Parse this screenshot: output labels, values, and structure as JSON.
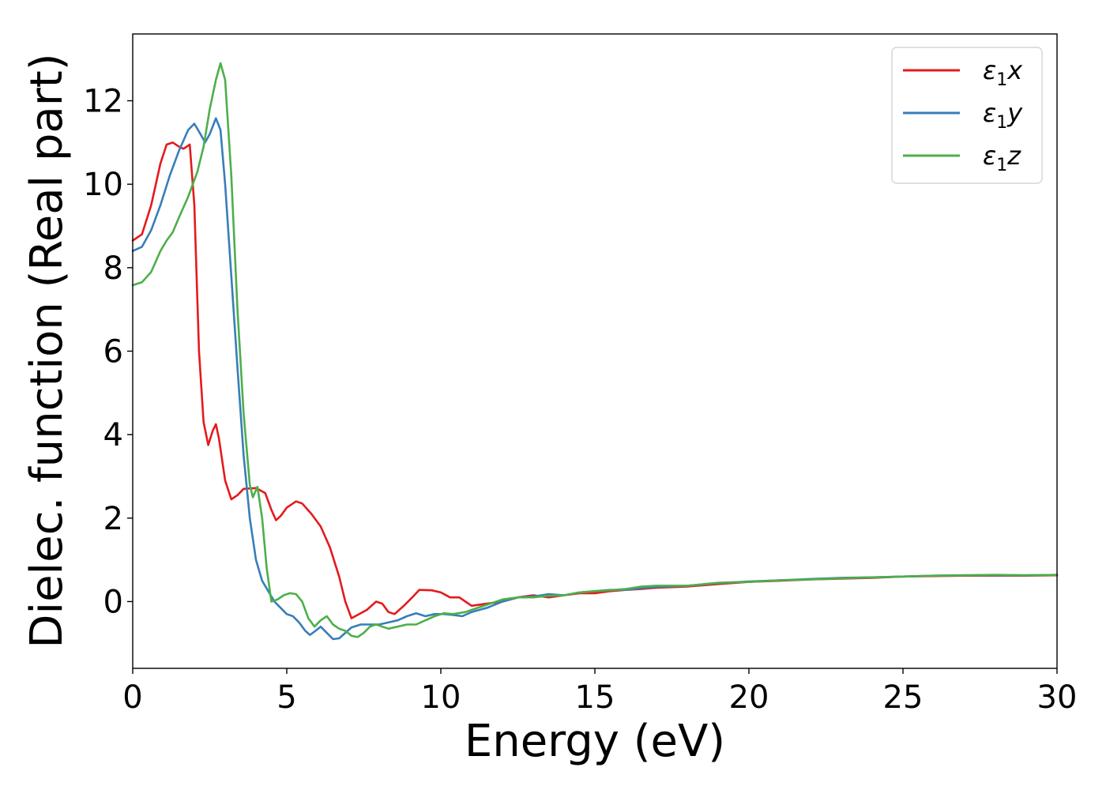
{
  "chart_data": {
    "type": "line",
    "xlabel": "Energy (eV)",
    "ylabel": "Dielec. function (Real part)",
    "xlim": [
      0,
      30
    ],
    "ylim": [
      -1.6,
      13.6
    ],
    "xticks": [
      0,
      5,
      10,
      15,
      20,
      25,
      30
    ],
    "yticks": [
      0,
      2,
      4,
      6,
      8,
      10,
      12
    ],
    "grid": false,
    "legend_position": "top-right",
    "series": [
      {
        "name": "ε1x",
        "legend_base": "ε",
        "legend_sub": "1",
        "legend_suffix": "x",
        "color": "#e41a1c",
        "points": [
          [
            0,
            8.65
          ],
          [
            0.3,
            8.8
          ],
          [
            0.6,
            9.5
          ],
          [
            0.9,
            10.5
          ],
          [
            1.1,
            10.95
          ],
          [
            1.3,
            11.0
          ],
          [
            1.5,
            10.9
          ],
          [
            1.65,
            10.85
          ],
          [
            1.85,
            10.95
          ],
          [
            2.0,
            9.5
          ],
          [
            2.15,
            6.0
          ],
          [
            2.3,
            4.3
          ],
          [
            2.45,
            3.75
          ],
          [
            2.6,
            4.1
          ],
          [
            2.7,
            4.25
          ],
          [
            2.8,
            3.9
          ],
          [
            3.0,
            2.9
          ],
          [
            3.2,
            2.45
          ],
          [
            3.4,
            2.55
          ],
          [
            3.6,
            2.7
          ],
          [
            4.0,
            2.72
          ],
          [
            4.3,
            2.6
          ],
          [
            4.5,
            2.2
          ],
          [
            4.65,
            1.95
          ],
          [
            4.8,
            2.05
          ],
          [
            5.0,
            2.25
          ],
          [
            5.3,
            2.4
          ],
          [
            5.5,
            2.35
          ],
          [
            5.8,
            2.1
          ],
          [
            6.1,
            1.8
          ],
          [
            6.4,
            1.3
          ],
          [
            6.7,
            0.6
          ],
          [
            6.9,
            0.0
          ],
          [
            7.1,
            -0.4
          ],
          [
            7.3,
            -0.32
          ],
          [
            7.6,
            -0.2
          ],
          [
            7.9,
            0.0
          ],
          [
            8.1,
            -0.05
          ],
          [
            8.3,
            -0.25
          ],
          [
            8.5,
            -0.3
          ],
          [
            8.8,
            -0.1
          ],
          [
            9.1,
            0.12
          ],
          [
            9.3,
            0.28
          ],
          [
            9.7,
            0.27
          ],
          [
            10.0,
            0.22
          ],
          [
            10.3,
            0.1
          ],
          [
            10.6,
            0.1
          ],
          [
            11.0,
            -0.1
          ],
          [
            11.5,
            -0.05
          ],
          [
            12.0,
            0.0
          ],
          [
            12.5,
            0.1
          ],
          [
            13.0,
            0.15
          ],
          [
            13.5,
            0.1
          ],
          [
            14.0,
            0.15
          ],
          [
            14.5,
            0.2
          ],
          [
            15.0,
            0.2
          ],
          [
            15.5,
            0.25
          ],
          [
            16.0,
            0.28
          ],
          [
            16.5,
            0.3
          ],
          [
            17.0,
            0.33
          ],
          [
            18.0,
            0.36
          ],
          [
            19.0,
            0.42
          ],
          [
            20.0,
            0.47
          ],
          [
            21.0,
            0.5
          ],
          [
            22.0,
            0.53
          ],
          [
            23.0,
            0.55
          ],
          [
            24.0,
            0.57
          ],
          [
            25.0,
            0.6
          ],
          [
            26.0,
            0.61
          ],
          [
            27.0,
            0.62
          ],
          [
            28.0,
            0.62
          ],
          [
            29.0,
            0.62
          ],
          [
            30.0,
            0.63
          ]
        ]
      },
      {
        "name": "ε1y",
        "legend_base": "ε",
        "legend_sub": "1",
        "legend_suffix": "y",
        "color": "#377eb8",
        "points": [
          [
            0,
            8.4
          ],
          [
            0.3,
            8.5
          ],
          [
            0.6,
            8.9
          ],
          [
            0.9,
            9.5
          ],
          [
            1.2,
            10.2
          ],
          [
            1.5,
            10.8
          ],
          [
            1.8,
            11.3
          ],
          [
            2.0,
            11.45
          ],
          [
            2.2,
            11.2
          ],
          [
            2.35,
            11.0
          ],
          [
            2.5,
            11.2
          ],
          [
            2.7,
            11.58
          ],
          [
            2.85,
            11.3
          ],
          [
            3.0,
            10.0
          ],
          [
            3.2,
            7.8
          ],
          [
            3.4,
            5.6
          ],
          [
            3.6,
            3.5
          ],
          [
            3.8,
            2.0
          ],
          [
            4.0,
            1.0
          ],
          [
            4.2,
            0.5
          ],
          [
            4.4,
            0.25
          ],
          [
            4.6,
            0.0
          ],
          [
            4.8,
            -0.15
          ],
          [
            5.0,
            -0.3
          ],
          [
            5.2,
            -0.35
          ],
          [
            5.4,
            -0.5
          ],
          [
            5.6,
            -0.7
          ],
          [
            5.75,
            -0.8
          ],
          [
            5.9,
            -0.72
          ],
          [
            6.1,
            -0.6
          ],
          [
            6.3,
            -0.75
          ],
          [
            6.5,
            -0.9
          ],
          [
            6.7,
            -0.88
          ],
          [
            6.9,
            -0.75
          ],
          [
            7.1,
            -0.62
          ],
          [
            7.4,
            -0.55
          ],
          [
            7.7,
            -0.55
          ],
          [
            8.0,
            -0.55
          ],
          [
            8.3,
            -0.5
          ],
          [
            8.6,
            -0.45
          ],
          [
            8.9,
            -0.35
          ],
          [
            9.2,
            -0.28
          ],
          [
            9.5,
            -0.35
          ],
          [
            9.8,
            -0.3
          ],
          [
            10.1,
            -0.3
          ],
          [
            10.4,
            -0.32
          ],
          [
            10.7,
            -0.35
          ],
          [
            11.0,
            -0.25
          ],
          [
            11.5,
            -0.15
          ],
          [
            12.0,
            0.0
          ],
          [
            12.5,
            0.1
          ],
          [
            13.0,
            0.12
          ],
          [
            13.5,
            0.18
          ],
          [
            14.0,
            0.15
          ],
          [
            14.5,
            0.22
          ],
          [
            15.0,
            0.25
          ],
          [
            15.5,
            0.28
          ],
          [
            16.0,
            0.28
          ],
          [
            16.5,
            0.32
          ],
          [
            17.0,
            0.35
          ],
          [
            18.0,
            0.38
          ],
          [
            19.0,
            0.44
          ],
          [
            20.0,
            0.48
          ],
          [
            21.0,
            0.51
          ],
          [
            22.0,
            0.54
          ],
          [
            23.0,
            0.57
          ],
          [
            24.0,
            0.58
          ],
          [
            25.0,
            0.6
          ],
          [
            26.0,
            0.62
          ],
          [
            27.0,
            0.63
          ],
          [
            28.0,
            0.63
          ],
          [
            29.0,
            0.63
          ],
          [
            30.0,
            0.64
          ]
        ]
      },
      {
        "name": "ε1z",
        "legend_base": "ε",
        "legend_sub": "1",
        "legend_suffix": "z",
        "color": "#4daf4a",
        "points": [
          [
            0,
            7.58
          ],
          [
            0.3,
            7.65
          ],
          [
            0.6,
            7.9
          ],
          [
            0.9,
            8.4
          ],
          [
            1.1,
            8.65
          ],
          [
            1.3,
            8.85
          ],
          [
            1.5,
            9.2
          ],
          [
            1.8,
            9.7
          ],
          [
            2.1,
            10.3
          ],
          [
            2.3,
            10.9
          ],
          [
            2.5,
            11.8
          ],
          [
            2.7,
            12.5
          ],
          [
            2.85,
            12.9
          ],
          [
            3.0,
            12.5
          ],
          [
            3.2,
            10.2
          ],
          [
            3.4,
            7.0
          ],
          [
            3.6,
            4.5
          ],
          [
            3.8,
            2.8
          ],
          [
            3.9,
            2.5
          ],
          [
            4.05,
            2.75
          ],
          [
            4.2,
            2.0
          ],
          [
            4.35,
            0.8
          ],
          [
            4.5,
            0.0
          ],
          [
            4.7,
            0.05
          ],
          [
            4.9,
            0.15
          ],
          [
            5.1,
            0.2
          ],
          [
            5.3,
            0.18
          ],
          [
            5.5,
            0.0
          ],
          [
            5.7,
            -0.4
          ],
          [
            5.9,
            -0.6
          ],
          [
            6.1,
            -0.45
          ],
          [
            6.3,
            -0.35
          ],
          [
            6.5,
            -0.55
          ],
          [
            6.7,
            -0.65
          ],
          [
            6.9,
            -0.7
          ],
          [
            7.1,
            -0.82
          ],
          [
            7.3,
            -0.85
          ],
          [
            7.5,
            -0.75
          ],
          [
            7.7,
            -0.6
          ],
          [
            7.9,
            -0.55
          ],
          [
            8.1,
            -0.6
          ],
          [
            8.3,
            -0.65
          ],
          [
            8.6,
            -0.6
          ],
          [
            8.9,
            -0.55
          ],
          [
            9.2,
            -0.55
          ],
          [
            9.5,
            -0.45
          ],
          [
            9.8,
            -0.35
          ],
          [
            10.1,
            -0.28
          ],
          [
            10.4,
            -0.3
          ],
          [
            10.8,
            -0.25
          ],
          [
            11.2,
            -0.15
          ],
          [
            11.6,
            -0.05
          ],
          [
            12.0,
            0.05
          ],
          [
            12.5,
            0.1
          ],
          [
            13.0,
            0.1
          ],
          [
            13.5,
            0.14
          ],
          [
            14.0,
            0.15
          ],
          [
            14.5,
            0.22
          ],
          [
            15.0,
            0.25
          ],
          [
            15.5,
            0.27
          ],
          [
            16.0,
            0.3
          ],
          [
            16.5,
            0.36
          ],
          [
            17.0,
            0.38
          ],
          [
            18.0,
            0.38
          ],
          [
            19.0,
            0.45
          ],
          [
            20.0,
            0.47
          ],
          [
            21.0,
            0.51
          ],
          [
            22.0,
            0.53
          ],
          [
            23.0,
            0.56
          ],
          [
            24.0,
            0.58
          ],
          [
            25.0,
            0.6
          ],
          [
            26.0,
            0.62
          ],
          [
            27.0,
            0.63
          ],
          [
            28.0,
            0.64
          ],
          [
            29.0,
            0.63
          ],
          [
            30.0,
            0.64
          ]
        ]
      }
    ]
  }
}
